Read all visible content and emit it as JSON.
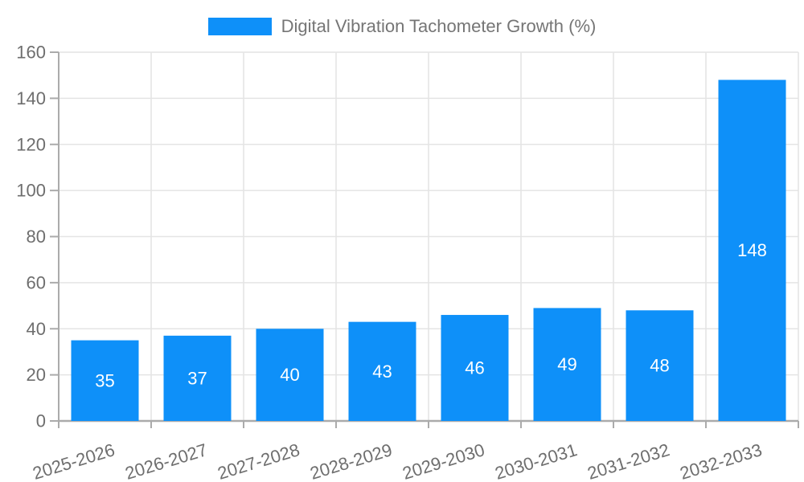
{
  "chart_data": {
    "type": "bar",
    "title": "Digital Vibration Tachometer Growth (%)",
    "categories": [
      "2025-2026",
      "2026-2027",
      "2027-2028",
      "2028-2029",
      "2029-2030",
      "2030-2031",
      "2031-2032",
      "2032-2033"
    ],
    "values": [
      35,
      37,
      40,
      43,
      46,
      49,
      48,
      148
    ],
    "xlabel": "",
    "ylabel": "",
    "ylim": [
      0,
      160
    ],
    "yticks": [
      0,
      20,
      40,
      60,
      80,
      100,
      120,
      140,
      160
    ],
    "grid": true,
    "legend_position": "top",
    "bar_color": "#0e90f9",
    "value_label_color": "#ffffff",
    "grid_color": "#e4e4e4",
    "axis_color": "#ababab",
    "tick_label_color": "#6e6e6e",
    "legend_text_color": "#757575",
    "x_label_rotation_deg": -17
  }
}
